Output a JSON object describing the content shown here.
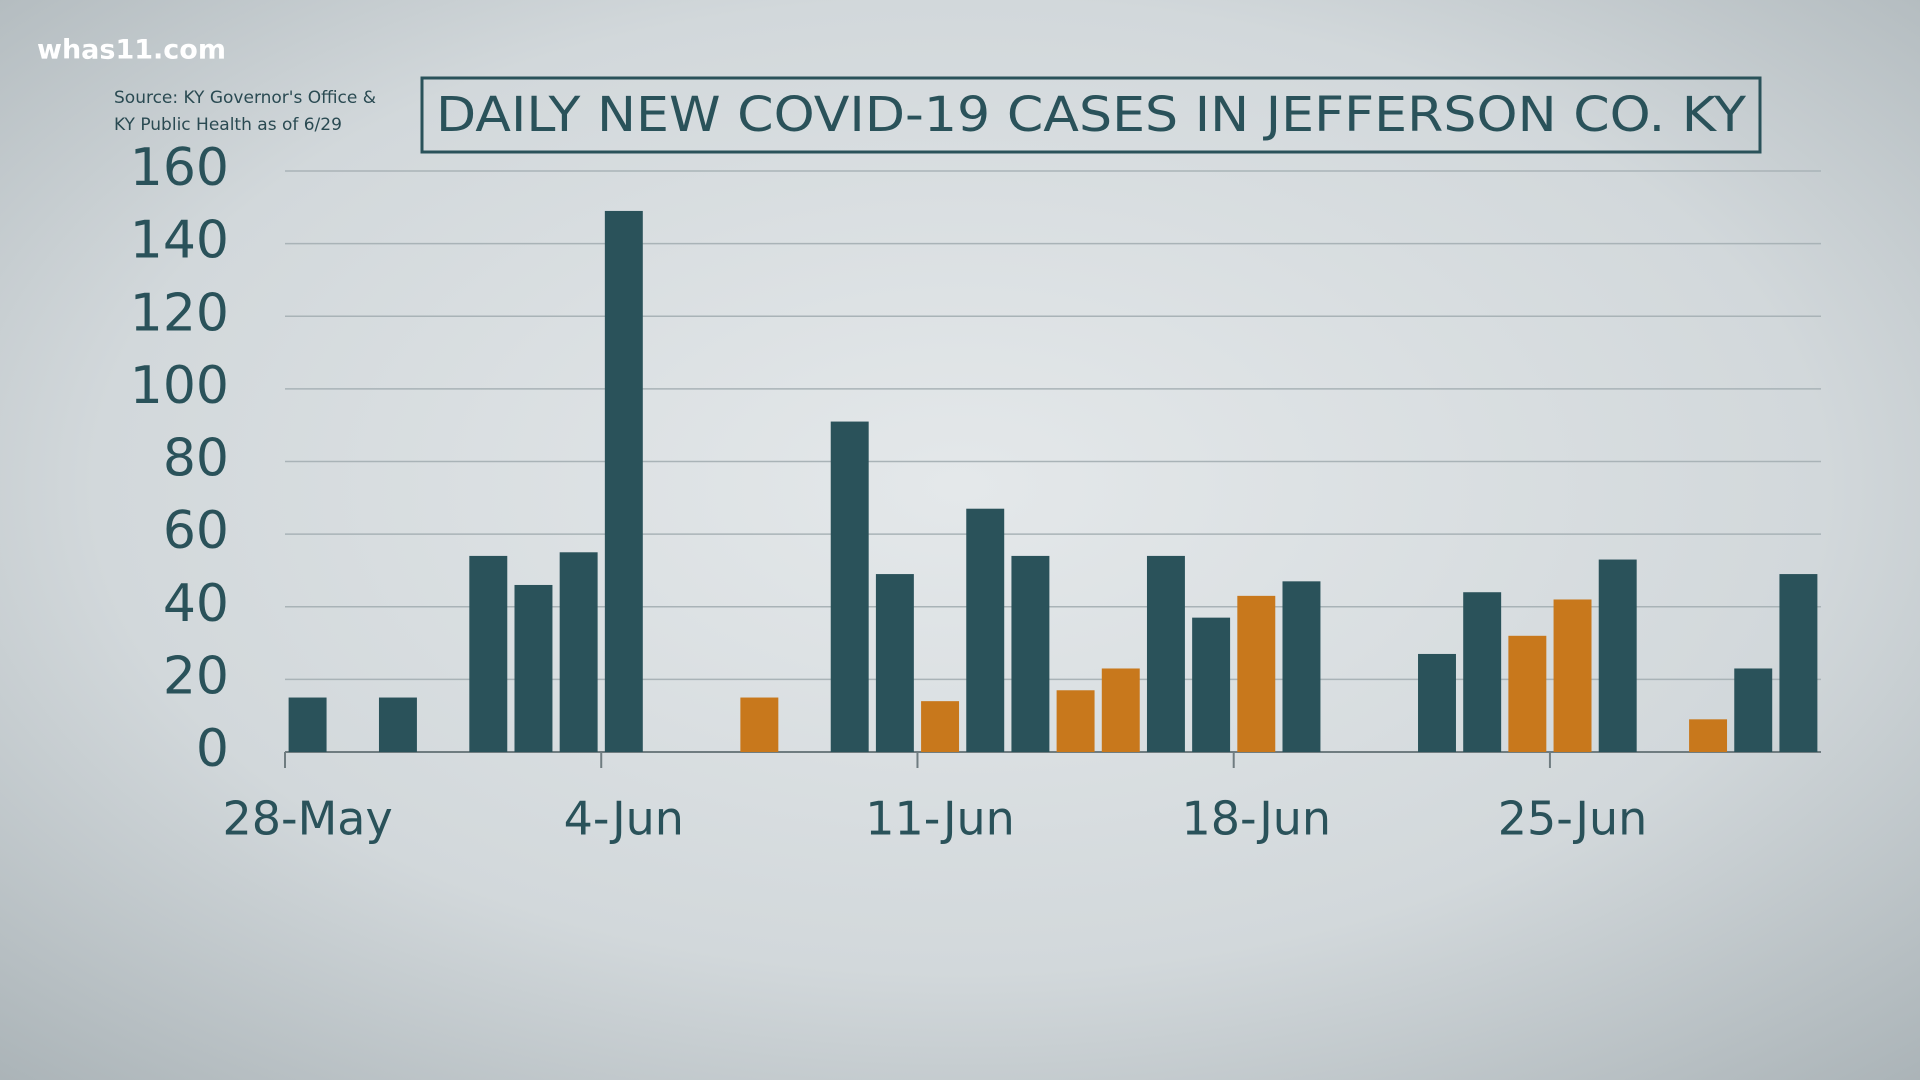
{
  "watermark": "whas11.com",
  "chart_data": {
    "type": "bar",
    "title": "DAILY NEW COVID-19 CASES IN JEFFERSON CO. KY",
    "source": [
      "Source: KY Governor's Office &",
      "KY Public Health as of 6/29"
    ],
    "categories": [
      "28-May",
      null,
      null,
      null,
      null,
      null,
      null,
      "4-Jun",
      null,
      null,
      null,
      null,
      null,
      null,
      "11-Jun",
      null,
      null,
      null,
      null,
      null,
      null,
      "18-Jun",
      null,
      null,
      null,
      null,
      null,
      null,
      "25-Jun",
      null,
      null,
      null,
      null,
      null
    ],
    "values": [
      15,
      null,
      15,
      null,
      54,
      46,
      55,
      149,
      null,
      null,
      15,
      null,
      91,
      49,
      14,
      67,
      54,
      17,
      23,
      54,
      37,
      43,
      47,
      null,
      null,
      27,
      44,
      32,
      42,
      53,
      null,
      9,
      23,
      49
    ],
    "colors": [
      "#2a525a",
      "#2a525a",
      "#2a525a",
      "#2a525a",
      "#2a525a",
      "#2a525a",
      "#2a525a",
      "#2a525a",
      "#2a525a",
      "#2a525a",
      "#c8781c",
      "#2a525a",
      "#2a525a",
      "#2a525a",
      "#c8781c",
      "#2a525a",
      "#2a525a",
      "#c8781c",
      "#c8781c",
      "#2a525a",
      "#2a525a",
      "#c8781c",
      "#2a525a",
      "#2a525a",
      "#2a525a",
      "#2a525a",
      "#2a525a",
      "#c8781c",
      "#c8781c",
      "#2a525a",
      "#2a525a",
      "#c8781c",
      "#2a525a",
      "#2a525a"
    ],
    "ylim": [
      0,
      160
    ],
    "yticks": [
      0,
      20,
      40,
      60,
      80,
      100,
      120,
      140,
      160
    ],
    "grid": true
  }
}
